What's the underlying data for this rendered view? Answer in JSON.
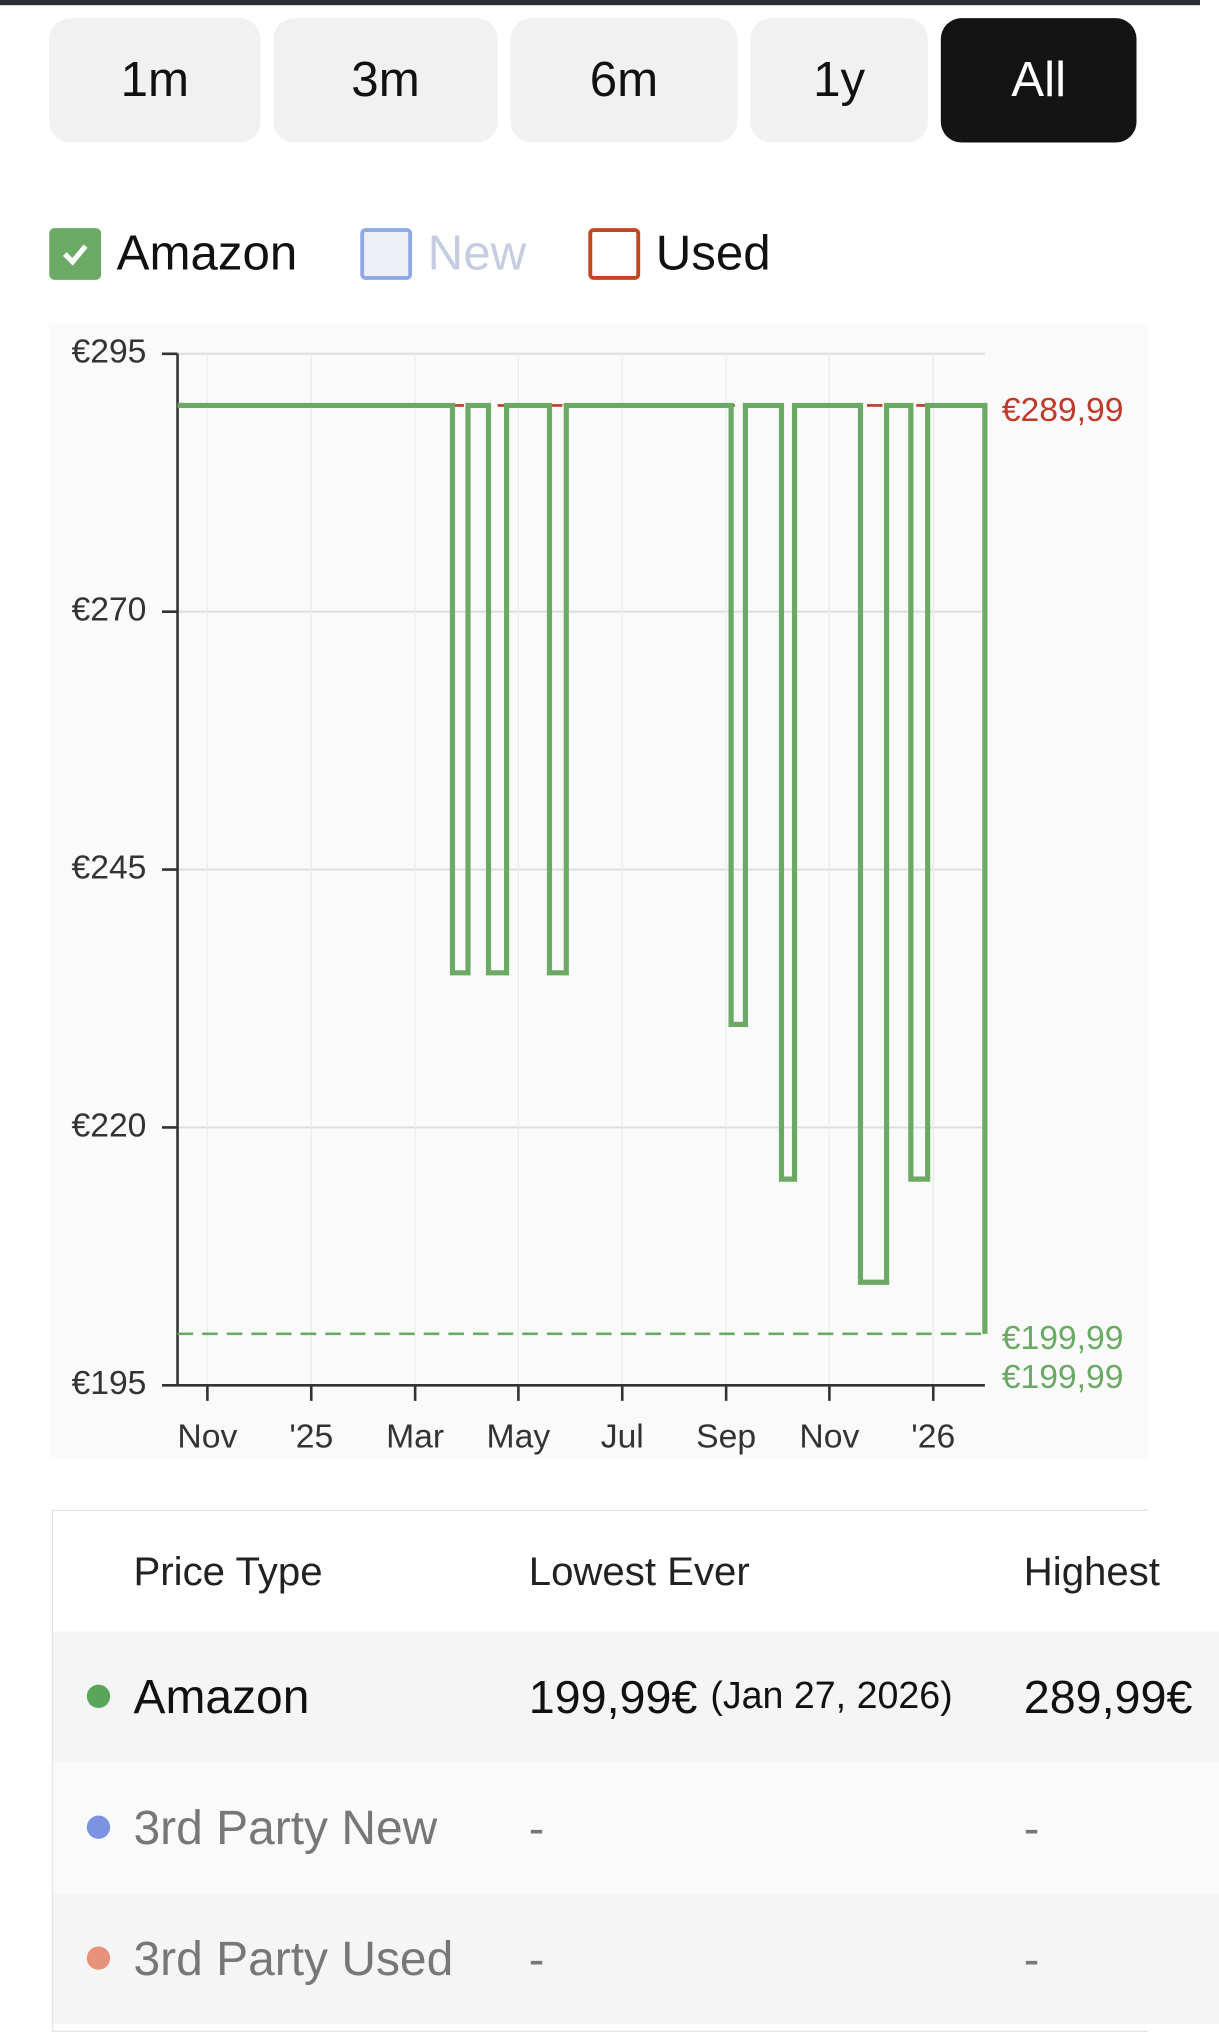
{
  "range_buttons": [
    {
      "label": "1m",
      "selected": false
    },
    {
      "label": "3m",
      "selected": false
    },
    {
      "label": "6m",
      "selected": false
    },
    {
      "label": "1y",
      "selected": false
    },
    {
      "label": "All",
      "selected": true
    }
  ],
  "chart_data": {
    "type": "line",
    "step": true,
    "series": [
      {
        "name": "Amazon",
        "color": "#6aaa64",
        "checked": true,
        "x": [
          2024.785,
          2025.227,
          2025.227,
          2025.252,
          2025.252,
          2025.285,
          2025.285,
          2025.314,
          2025.314,
          2025.383,
          2025.383,
          2025.41,
          2025.41,
          2025.675,
          2025.675,
          2025.698,
          2025.698,
          2025.756,
          2025.756,
          2025.777,
          2025.777,
          2025.883,
          2025.883,
          2025.925,
          2025.925,
          2025.964,
          2025.964,
          2025.991,
          2025.991,
          2026.083,
          2026.083
        ],
        "values": [
          289.99,
          289.99,
          234.99,
          234.99,
          289.99,
          289.99,
          234.99,
          234.99,
          289.99,
          289.99,
          234.99,
          234.99,
          289.99,
          289.99,
          229.99,
          229.99,
          289.99,
          289.99,
          214.99,
          214.99,
          289.99,
          289.99,
          204.99,
          204.99,
          289.99,
          289.99,
          214.99,
          214.99,
          289.99,
          289.99,
          199.99
        ]
      }
    ],
    "hidden_series": [
      {
        "name": "New",
        "color": "#8fa8e8",
        "checked": false
      },
      {
        "name": "Used",
        "color": "#c0471f",
        "checked": false
      }
    ],
    "xlim": [
      2024.785,
      2026.083
    ],
    "xticks": [
      {
        "value": 2024.833,
        "label": "Nov"
      },
      {
        "value": 2025.0,
        "label": "'25"
      },
      {
        "value": 2025.167,
        "label": "Mar"
      },
      {
        "value": 2025.333,
        "label": "May"
      },
      {
        "value": 2025.5,
        "label": "Jul"
      },
      {
        "value": 2025.667,
        "label": "Sep"
      },
      {
        "value": 2025.833,
        "label": "Nov"
      },
      {
        "value": 2026.0,
        "label": "'26"
      }
    ],
    "ylim": [
      195,
      295
    ],
    "yticks": [
      {
        "value": 195,
        "label": "€195"
      },
      {
        "value": 220,
        "label": "€220"
      },
      {
        "value": 245,
        "label": "€245"
      },
      {
        "value": 270,
        "label": "€270"
      },
      {
        "value": 295,
        "label": "€295"
      }
    ],
    "grid": true,
    "annotations": [
      {
        "label": "€289,99",
        "value": 289.99,
        "color": "#c0392b",
        "line": true
      },
      {
        "label": "€199,99",
        "value": 199.99,
        "color": "#6aaa64",
        "line": true
      },
      {
        "label": "€199,99",
        "value": 199.99,
        "color": "#6aaa64",
        "line": false
      }
    ]
  },
  "table": {
    "header": [
      "Price Type",
      "Lowest Ever",
      "Highest"
    ],
    "rows": [
      {
        "type": "Amazon",
        "dot": "#5aa55a",
        "lowest": "199,99€",
        "lowest_date": "(Jan 27, 2026)",
        "highest": "289,99€"
      },
      {
        "type": "3rd Party New",
        "dot": "#7b93e0",
        "lowest": "-",
        "highest": "-"
      },
      {
        "type": "3rd Party Used",
        "dot": "#e8927a",
        "lowest": "-",
        "highest": "-"
      }
    ]
  }
}
